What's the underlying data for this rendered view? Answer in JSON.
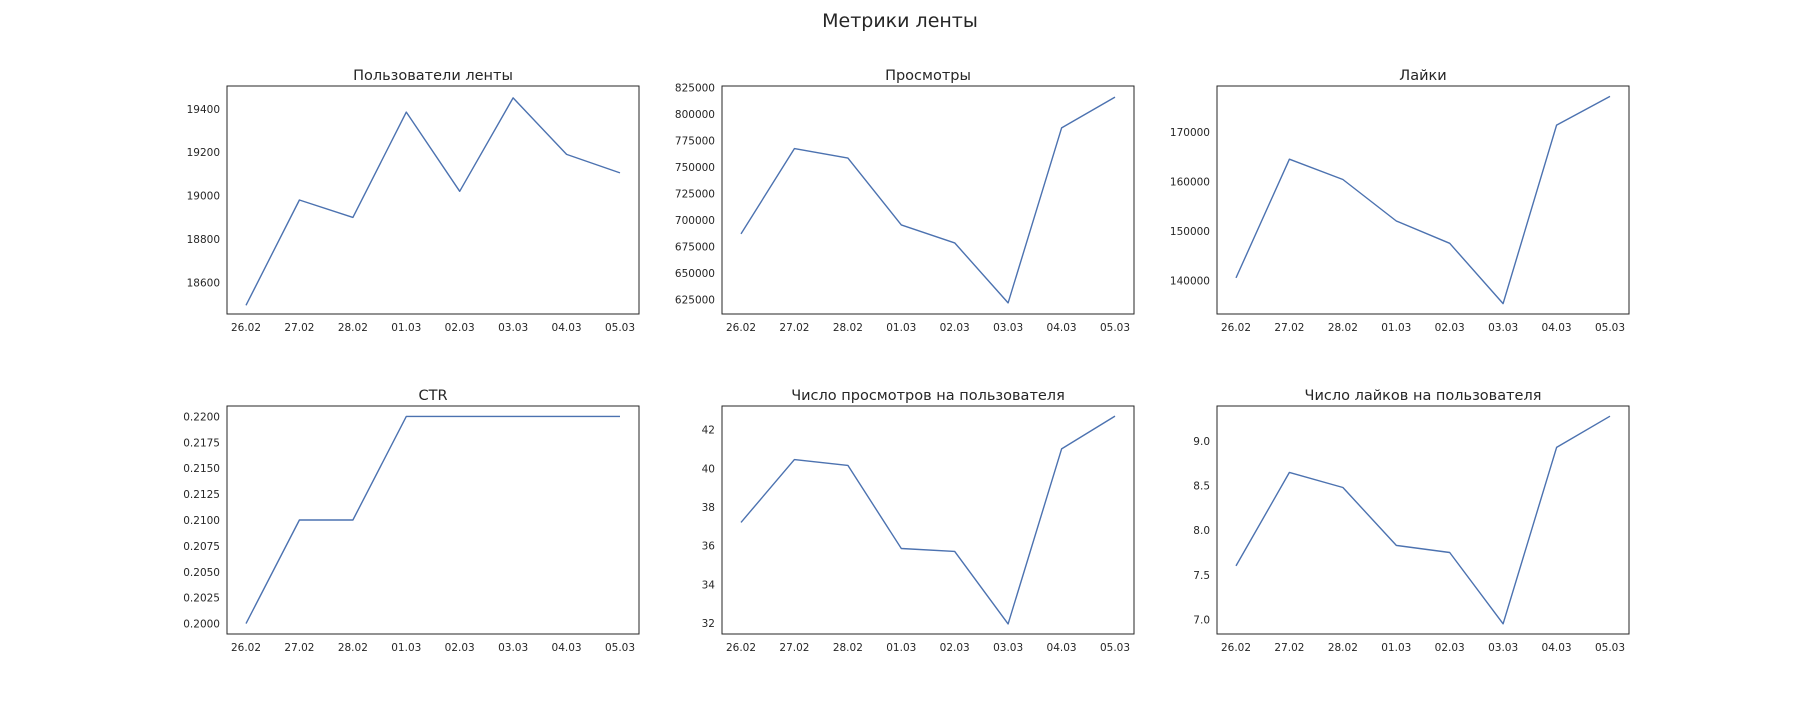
{
  "suptitle": "Метрики ленты",
  "colors": {
    "line": "#4c72b0",
    "axes": "#262626",
    "background": "#ffffff"
  },
  "chart_data": [
    {
      "type": "line",
      "title": "Пользователи ленты",
      "xlabel": "",
      "ylabel": "",
      "categories": [
        "26.02",
        "27.02",
        "28.02",
        "01.03",
        "02.03",
        "03.03",
        "04.03",
        "05.03"
      ],
      "values": [
        18495,
        18980,
        18900,
        19385,
        19020,
        19450,
        19190,
        19105
      ],
      "ylim": [
        18455,
        19505
      ],
      "yticks": [
        18600,
        18800,
        19000,
        19200,
        19400
      ],
      "ytick_labels": [
        "18600",
        "18800",
        "19000",
        "19200",
        "19400"
      ],
      "grid": false
    },
    {
      "type": "line",
      "title": "Просмотры",
      "xlabel": "",
      "ylabel": "",
      "categories": [
        "26.02",
        "27.02",
        "28.02",
        "01.03",
        "02.03",
        "03.03",
        "04.03",
        "05.03"
      ],
      "values": [
        687000,
        767500,
        758500,
        695500,
        678500,
        622000,
        787000,
        816000
      ],
      "ylim": [
        611500,
        826500
      ],
      "yticks": [
        625000,
        650000,
        675000,
        700000,
        725000,
        750000,
        775000,
        800000,
        825000
      ],
      "ytick_labels": [
        "625000",
        "650000",
        "675000",
        "700000",
        "725000",
        "750000",
        "775000",
        "800000",
        "825000"
      ],
      "grid": false
    },
    {
      "type": "line",
      "title": "Лайки",
      "xlabel": "",
      "ylabel": "",
      "categories": [
        "26.02",
        "27.02",
        "28.02",
        "01.03",
        "02.03",
        "03.03",
        "04.03",
        "05.03"
      ],
      "values": [
        140500,
        164500,
        160400,
        152000,
        147500,
        135300,
        171400,
        177200
      ],
      "ylim": [
        133200,
        179300
      ],
      "yticks": [
        140000,
        150000,
        160000,
        170000
      ],
      "ytick_labels": [
        "140000",
        "150000",
        "160000",
        "170000"
      ],
      "grid": false
    },
    {
      "type": "line",
      "title": "CTR",
      "xlabel": "",
      "ylabel": "",
      "categories": [
        "26.02",
        "27.02",
        "28.02",
        "01.03",
        "02.03",
        "03.03",
        "04.03",
        "05.03"
      ],
      "values": [
        0.2,
        0.21,
        0.21,
        0.22,
        0.22,
        0.22,
        0.22,
        0.22
      ],
      "ylim": [
        0.199,
        0.221
      ],
      "yticks": [
        0.2,
        0.2025,
        0.205,
        0.2075,
        0.21,
        0.2125,
        0.215,
        0.2175,
        0.22
      ],
      "ytick_labels": [
        "0.2000",
        "0.2025",
        "0.2050",
        "0.2075",
        "0.2100",
        "0.2125",
        "0.2150",
        "0.2175",
        "0.2200"
      ],
      "grid": false
    },
    {
      "type": "line",
      "title": "Число просмотров на пользователя",
      "xlabel": "",
      "ylabel": "",
      "categories": [
        "26.02",
        "27.02",
        "28.02",
        "01.03",
        "02.03",
        "03.03",
        "04.03",
        "05.03"
      ],
      "values": [
        37.2,
        40.45,
        40.15,
        35.85,
        35.7,
        31.95,
        41.0,
        42.7
      ],
      "ylim": [
        31.43,
        43.22
      ],
      "yticks": [
        32,
        34,
        36,
        38,
        40,
        42
      ],
      "ytick_labels": [
        "32",
        "34",
        "36",
        "38",
        "40",
        "42"
      ],
      "grid": false
    },
    {
      "type": "line",
      "title": "Число лайков на пользователя",
      "xlabel": "",
      "ylabel": "",
      "categories": [
        "26.02",
        "27.02",
        "28.02",
        "01.03",
        "02.03",
        "03.03",
        "04.03",
        "05.03"
      ],
      "values": [
        7.6,
        8.65,
        8.48,
        7.83,
        7.75,
        6.95,
        8.93,
        9.28
      ],
      "ylim": [
        6.835,
        9.395
      ],
      "yticks": [
        7.0,
        7.5,
        8.0,
        8.5,
        9.0
      ],
      "ytick_labels": [
        "7.0",
        "7.5",
        "8.0",
        "8.5",
        "9.0"
      ],
      "grid": false
    }
  ]
}
